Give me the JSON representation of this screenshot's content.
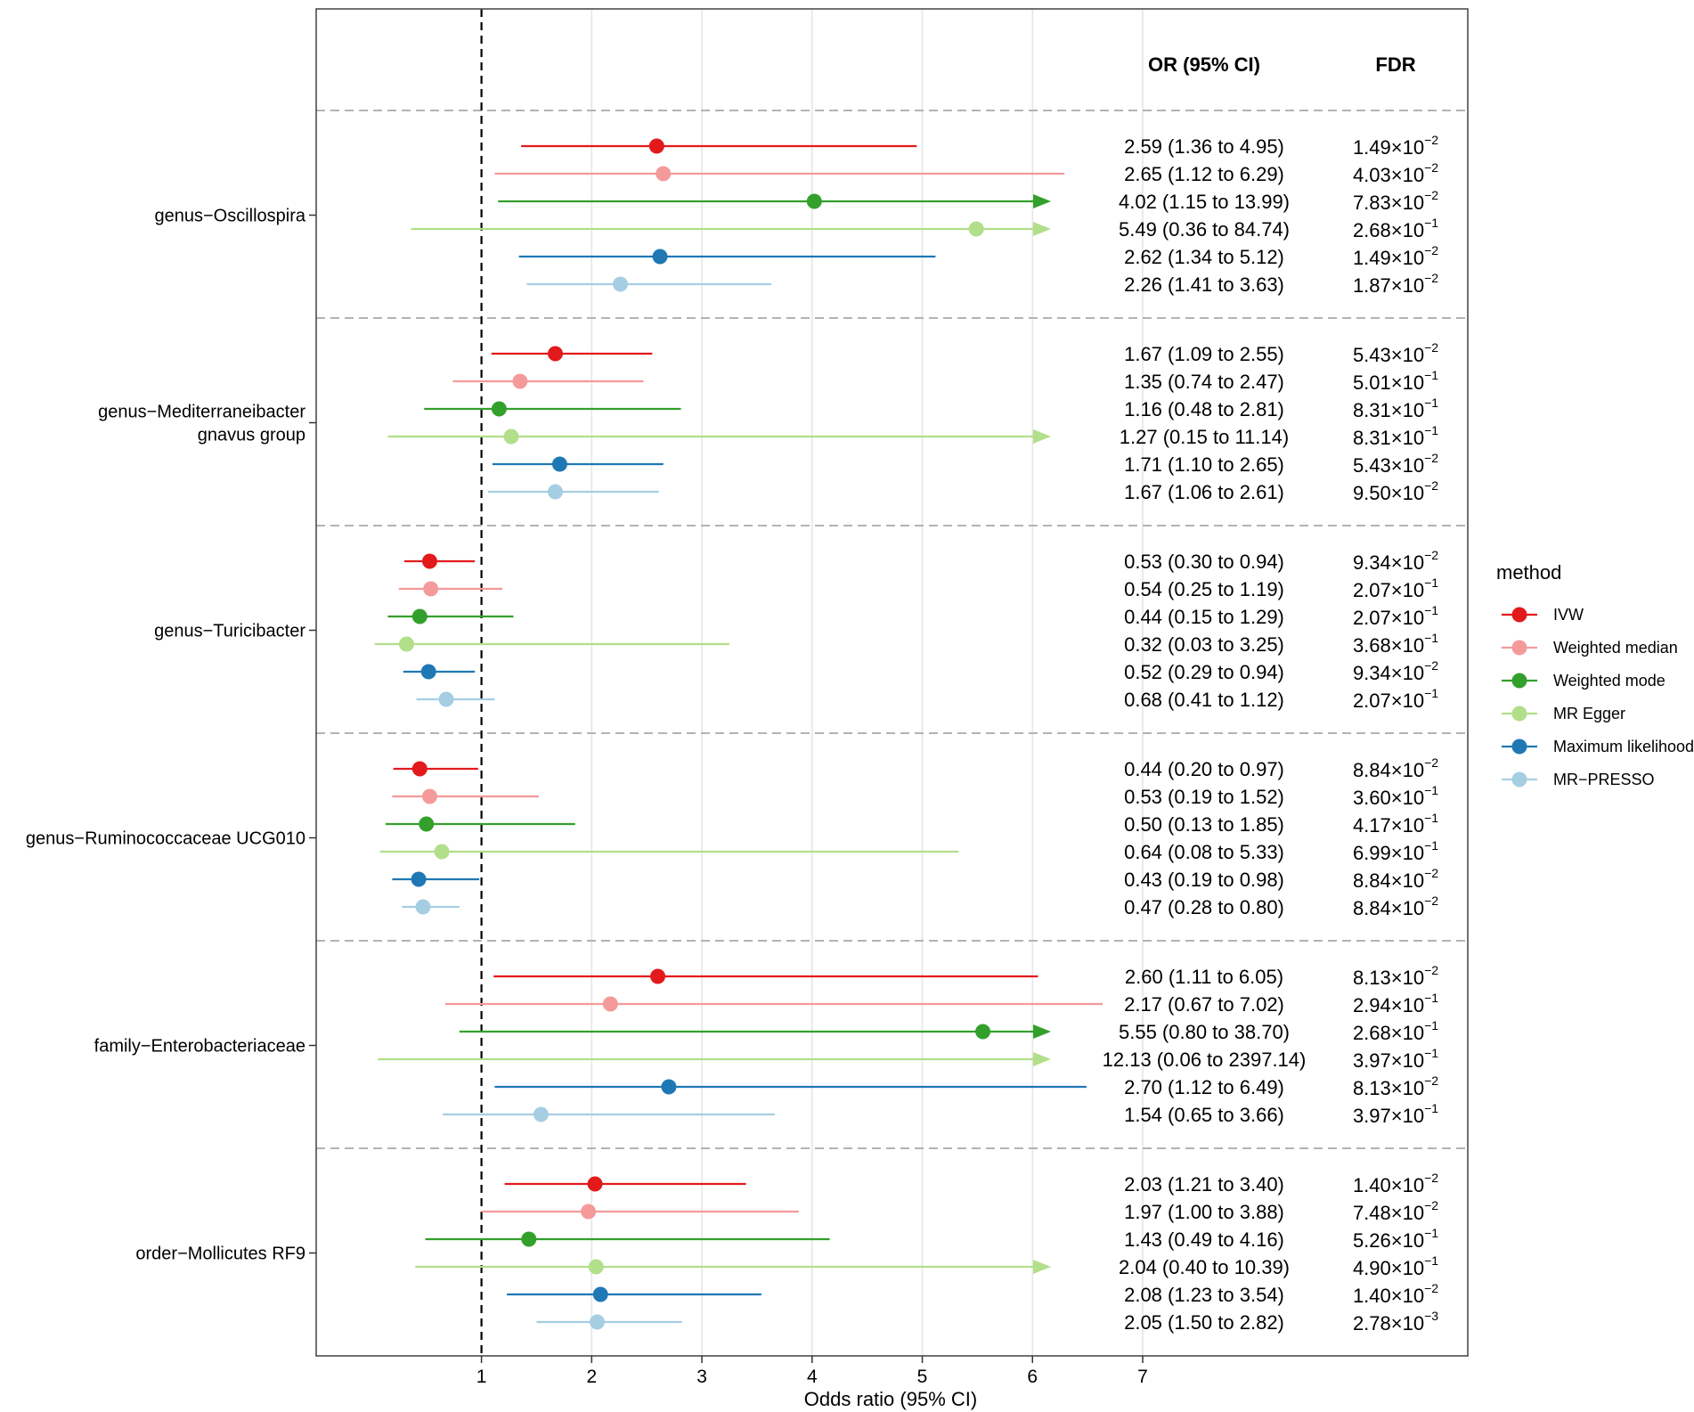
{
  "chart_data": {
    "type": "forest",
    "xlabel": "Odds ratio (95% CI)",
    "x_ticks": [
      1,
      2,
      3,
      4,
      5,
      6,
      7
    ],
    "x_tick_labels": [
      "1",
      "2",
      "3",
      "4",
      "5",
      "6",
      "7"
    ],
    "xlim": [
      -0.5,
      9.95
    ],
    "reference_line": 1,
    "columns": {
      "or": "OR (95% CI)",
      "fdr": "FDR"
    },
    "legend": {
      "title": "method",
      "position": "right",
      "methods": [
        {
          "name": "IVW",
          "color": "#e31a1c"
        },
        {
          "name": "Weighted median",
          "color": "#f59a9a"
        },
        {
          "name": "Weighted mode",
          "color": "#33a02c"
        },
        {
          "name": "MR Egger",
          "color": "#b2df8a"
        },
        {
          "name": "Maximum likelihood",
          "color": "#1f78b4"
        },
        {
          "name": "MR−PRESSO",
          "color": "#a6cee3"
        }
      ]
    },
    "groups": [
      {
        "label": [
          "genus−Oscillospira"
        ],
        "rows": [
          {
            "or": 2.59,
            "lo": 1.36,
            "hi": 4.95,
            "arrow": false,
            "ci_text": "2.59 (1.36 to 4.95)",
            "fdr_base": "1.49",
            "fdr_exp": "−2"
          },
          {
            "or": 2.65,
            "lo": 1.12,
            "hi": 6.29,
            "arrow": false,
            "ci_text": "2.65 (1.12 to 6.29)",
            "fdr_base": "4.03",
            "fdr_exp": "−2"
          },
          {
            "or": 4.02,
            "lo": 1.15,
            "hi": 13.99,
            "arrow": true,
            "ci_text": "4.02 (1.15 to 13.99)",
            "fdr_base": "7.83",
            "fdr_exp": "−2"
          },
          {
            "or": 5.49,
            "lo": 0.36,
            "hi": 84.74,
            "arrow": true,
            "ci_text": "5.49 (0.36 to 84.74)",
            "fdr_base": "2.68",
            "fdr_exp": "−1"
          },
          {
            "or": 2.62,
            "lo": 1.34,
            "hi": 5.12,
            "arrow": false,
            "ci_text": "2.62 (1.34 to 5.12)",
            "fdr_base": "1.49",
            "fdr_exp": "−2"
          },
          {
            "or": 2.26,
            "lo": 1.41,
            "hi": 3.63,
            "arrow": false,
            "ci_text": "2.26 (1.41 to 3.63)",
            "fdr_base": "1.87",
            "fdr_exp": "−2"
          }
        ]
      },
      {
        "label": [
          "genus−Mediterraneibacter",
          "gnavus group"
        ],
        "rows": [
          {
            "or": 1.67,
            "lo": 1.09,
            "hi": 2.55,
            "arrow": false,
            "ci_text": "1.67 (1.09 to 2.55)",
            "fdr_base": "5.43",
            "fdr_exp": "−2"
          },
          {
            "or": 1.35,
            "lo": 0.74,
            "hi": 2.47,
            "arrow": false,
            "ci_text": "1.35 (0.74 to 2.47)",
            "fdr_base": "5.01",
            "fdr_exp": "−1"
          },
          {
            "or": 1.16,
            "lo": 0.48,
            "hi": 2.81,
            "arrow": false,
            "ci_text": "1.16 (0.48 to 2.81)",
            "fdr_base": "8.31",
            "fdr_exp": "−1"
          },
          {
            "or": 1.27,
            "lo": 0.15,
            "hi": 11.14,
            "arrow": true,
            "ci_text": "1.27 (0.15 to 11.14)",
            "fdr_base": "8.31",
            "fdr_exp": "−1"
          },
          {
            "or": 1.71,
            "lo": 1.1,
            "hi": 2.65,
            "arrow": false,
            "ci_text": "1.71 (1.10 to 2.65)",
            "fdr_base": "5.43",
            "fdr_exp": "−2"
          },
          {
            "or": 1.67,
            "lo": 1.06,
            "hi": 2.61,
            "arrow": false,
            "ci_text": "1.67 (1.06 to 2.61)",
            "fdr_base": "9.50",
            "fdr_exp": "−2"
          }
        ]
      },
      {
        "label": [
          "genus−Turicibacter"
        ],
        "rows": [
          {
            "or": 0.53,
            "lo": 0.3,
            "hi": 0.94,
            "arrow": false,
            "ci_text": "0.53 (0.30 to 0.94)",
            "fdr_base": "9.34",
            "fdr_exp": "−2"
          },
          {
            "or": 0.54,
            "lo": 0.25,
            "hi": 1.19,
            "arrow": false,
            "ci_text": "0.54 (0.25 to 1.19)",
            "fdr_base": "2.07",
            "fdr_exp": "−1"
          },
          {
            "or": 0.44,
            "lo": 0.15,
            "hi": 1.29,
            "arrow": false,
            "ci_text": "0.44 (0.15 to 1.29)",
            "fdr_base": "2.07",
            "fdr_exp": "−1"
          },
          {
            "or": 0.32,
            "lo": 0.03,
            "hi": 3.25,
            "arrow": false,
            "ci_text": "0.32 (0.03 to 3.25)",
            "fdr_base": "3.68",
            "fdr_exp": "−1"
          },
          {
            "or": 0.52,
            "lo": 0.29,
            "hi": 0.94,
            "arrow": false,
            "ci_text": "0.52 (0.29 to 0.94)",
            "fdr_base": "9.34",
            "fdr_exp": "−2"
          },
          {
            "or": 0.68,
            "lo": 0.41,
            "hi": 1.12,
            "arrow": false,
            "ci_text": "0.68 (0.41 to 1.12)",
            "fdr_base": "2.07",
            "fdr_exp": "−1"
          }
        ]
      },
      {
        "label": [
          "genus−Ruminococcaceae UCG010"
        ],
        "rows": [
          {
            "or": 0.44,
            "lo": 0.2,
            "hi": 0.97,
            "arrow": false,
            "ci_text": "0.44 (0.20 to 0.97)",
            "fdr_base": "8.84",
            "fdr_exp": "−2"
          },
          {
            "or": 0.53,
            "lo": 0.19,
            "hi": 1.52,
            "arrow": false,
            "ci_text": "0.53 (0.19 to 1.52)",
            "fdr_base": "3.60",
            "fdr_exp": "−1"
          },
          {
            "or": 0.5,
            "lo": 0.13,
            "hi": 1.85,
            "arrow": false,
            "ci_text": "0.50 (0.13 to 1.85)",
            "fdr_base": "4.17",
            "fdr_exp": "−1"
          },
          {
            "or": 0.64,
            "lo": 0.08,
            "hi": 5.33,
            "arrow": false,
            "ci_text": "0.64 (0.08 to 5.33)",
            "fdr_base": "6.99",
            "fdr_exp": "−1"
          },
          {
            "or": 0.43,
            "lo": 0.19,
            "hi": 0.98,
            "arrow": false,
            "ci_text": "0.43 (0.19 to 0.98)",
            "fdr_base": "8.84",
            "fdr_exp": "−2"
          },
          {
            "or": 0.47,
            "lo": 0.28,
            "hi": 0.8,
            "arrow": false,
            "ci_text": "0.47 (0.28 to 0.80)",
            "fdr_base": "8.84",
            "fdr_exp": "−2"
          }
        ]
      },
      {
        "label": [
          "family−Enterobacteriaceae"
        ],
        "rows": [
          {
            "or": 2.6,
            "lo": 1.11,
            "hi": 6.05,
            "arrow": false,
            "ci_text": "2.60 (1.11 to 6.05)",
            "fdr_base": "8.13",
            "fdr_exp": "−2"
          },
          {
            "or": 2.17,
            "lo": 0.67,
            "hi": 7.02,
            "arrow": false,
            "ci_text": "2.17 (0.67 to 7.02)",
            "fdr_base": "2.94",
            "fdr_exp": "−1"
          },
          {
            "or": 5.55,
            "lo": 0.8,
            "hi": 38.7,
            "arrow": true,
            "ci_text": "5.55 (0.80 to 38.70)",
            "fdr_base": "2.68",
            "fdr_exp": "−1"
          },
          {
            "or": 12.13,
            "lo": 0.06,
            "hi": 2397.14,
            "arrow": true,
            "ci_text": "12.13 (0.06 to 2397.14)",
            "fdr_base": "3.97",
            "fdr_exp": "−1"
          },
          {
            "or": 2.7,
            "lo": 1.12,
            "hi": 6.49,
            "arrow": false,
            "ci_text": "2.70 (1.12 to 6.49)",
            "fdr_base": "8.13",
            "fdr_exp": "−2"
          },
          {
            "or": 1.54,
            "lo": 0.65,
            "hi": 3.66,
            "arrow": false,
            "ci_text": "1.54 (0.65 to 3.66)",
            "fdr_base": "3.97",
            "fdr_exp": "−1"
          }
        ]
      },
      {
        "label": [
          "order−Mollicutes RF9"
        ],
        "rows": [
          {
            "or": 2.03,
            "lo": 1.21,
            "hi": 3.4,
            "arrow": false,
            "ci_text": "2.03 (1.21 to 3.40)",
            "fdr_base": "1.40",
            "fdr_exp": "−2"
          },
          {
            "or": 1.97,
            "lo": 1.0,
            "hi": 3.88,
            "arrow": false,
            "ci_text": "1.97 (1.00 to 3.88)",
            "fdr_base": "7.48",
            "fdr_exp": "−2"
          },
          {
            "or": 1.43,
            "lo": 0.49,
            "hi": 4.16,
            "arrow": false,
            "ci_text": "1.43 (0.49 to 4.16)",
            "fdr_base": "5.26",
            "fdr_exp": "−1"
          },
          {
            "or": 2.04,
            "lo": 0.4,
            "hi": 10.39,
            "arrow": true,
            "ci_text": "2.04 (0.40 to 10.39)",
            "fdr_base": "4.90",
            "fdr_exp": "−1"
          },
          {
            "or": 2.08,
            "lo": 1.23,
            "hi": 3.54,
            "arrow": false,
            "ci_text": "2.08 (1.23 to 3.54)",
            "fdr_base": "1.40",
            "fdr_exp": "−2"
          },
          {
            "or": 2.05,
            "lo": 1.5,
            "hi": 2.82,
            "arrow": false,
            "ci_text": "2.05 (1.50 to 2.82)",
            "fdr_base": "2.78",
            "fdr_exp": "−3"
          }
        ]
      }
    ]
  }
}
